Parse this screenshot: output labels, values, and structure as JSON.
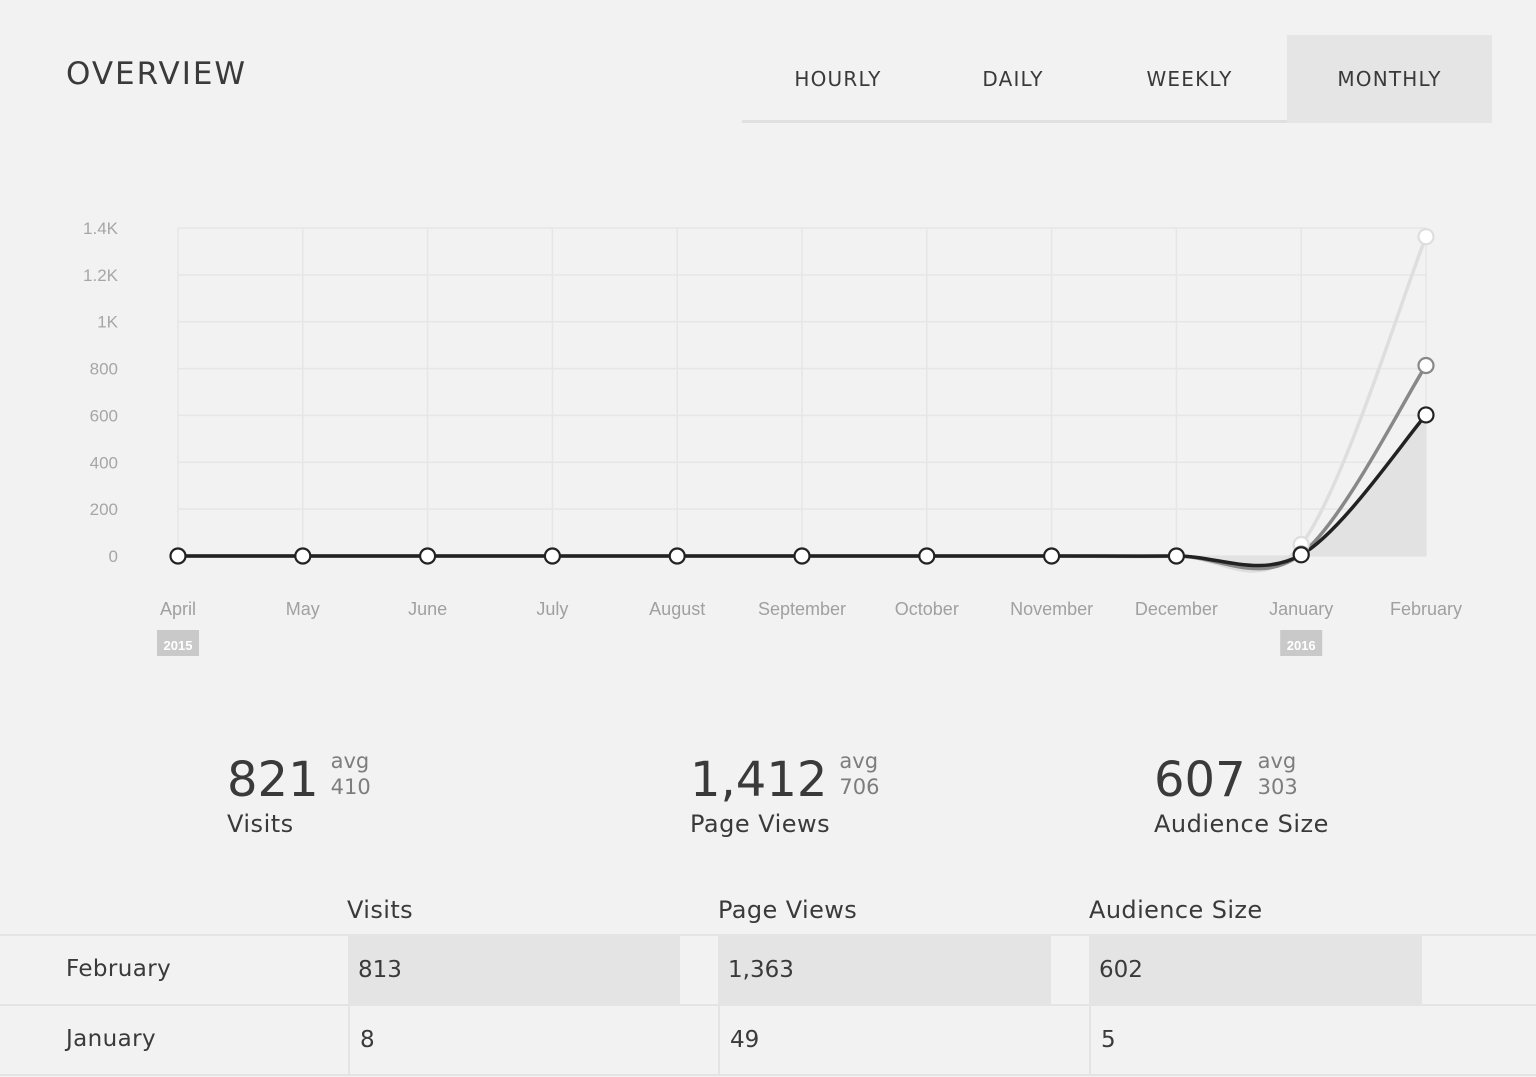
{
  "header": {
    "title": "OVERVIEW",
    "tabs": [
      {
        "label": "HOURLY",
        "active": false
      },
      {
        "label": "DAILY",
        "active": false
      },
      {
        "label": "WEEKLY",
        "active": false
      },
      {
        "label": "MONTHLY",
        "active": true
      }
    ]
  },
  "chart_data": {
    "type": "line",
    "categories": [
      "April",
      "May",
      "June",
      "July",
      "August",
      "September",
      "October",
      "November",
      "December",
      "January",
      "February"
    ],
    "year_markers": [
      {
        "category": "April",
        "label": "2015"
      },
      {
        "category": "January",
        "label": "2016"
      }
    ],
    "yticks": [
      "0",
      "200",
      "400",
      "600",
      "800",
      "1K",
      "1.2K",
      "1.4K"
    ],
    "ylim": [
      0,
      1400
    ],
    "grid": true,
    "series": [
      {
        "values": [
          0,
          0,
          0,
          0,
          0,
          0,
          0,
          0,
          0,
          49,
          1363
        ],
        "color": "#dedede"
      },
      {
        "values": [
          0,
          0,
          0,
          0,
          0,
          0,
          0,
          0,
          0,
          8,
          813
        ],
        "color": "#888888"
      },
      {
        "values": [
          0,
          0,
          0,
          0,
          0,
          0,
          0,
          0,
          0,
          5,
          602
        ],
        "color": "#222222"
      }
    ],
    "area_color": "#e2e2e2"
  },
  "stats": [
    {
      "value": "821",
      "avg_label": "avg",
      "avg": "410",
      "label": "Visits"
    },
    {
      "value": "1,412",
      "avg_label": "avg",
      "avg": "706",
      "label": "Page Views"
    },
    {
      "value": "607",
      "avg_label": "avg",
      "avg": "303",
      "label": "Audience Size"
    }
  ],
  "table": {
    "columns": [
      "Visits",
      "Page Views",
      "Audience Size"
    ],
    "rows": [
      {
        "label": "February",
        "values": [
          "813",
          "1,363",
          "602"
        ],
        "fractions": [
          1,
          1,
          1
        ]
      },
      {
        "label": "January",
        "values": [
          "8",
          "49",
          "5"
        ],
        "fractions": [
          0.01,
          0.036,
          0.008
        ]
      }
    ]
  }
}
